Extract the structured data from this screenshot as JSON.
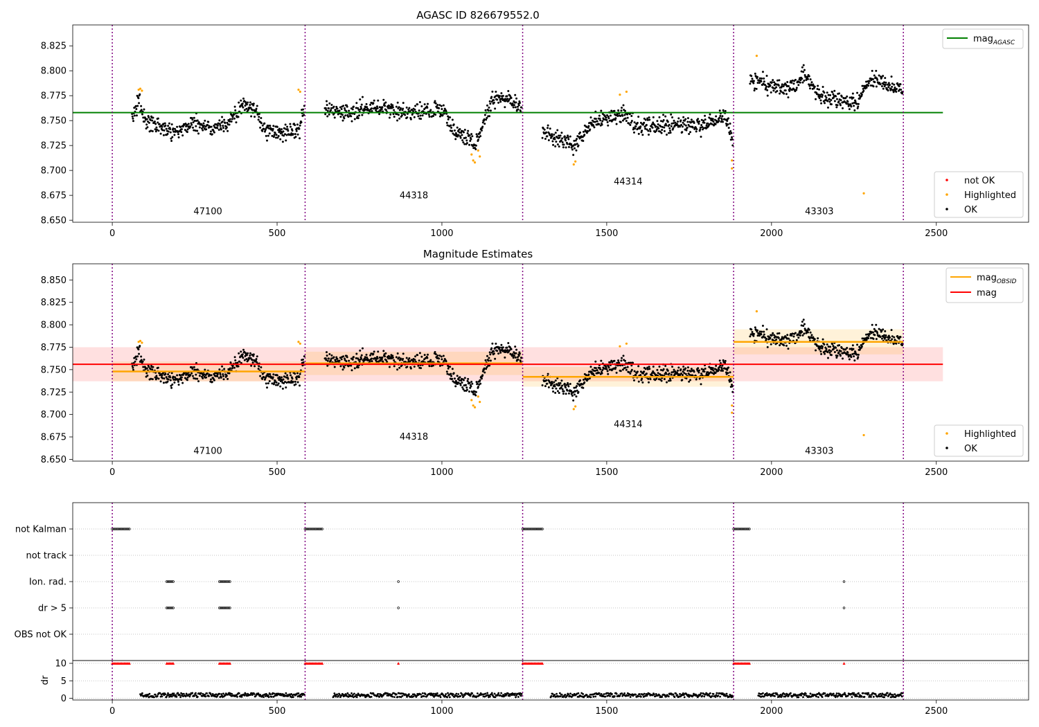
{
  "chart_data": [
    {
      "type": "scatter",
      "title": "AGASC ID 826679552.0",
      "xlim": [
        -120,
        2780
      ],
      "ylim": [
        8.648,
        8.846
      ],
      "xticks": [
        0,
        500,
        1000,
        1500,
        2000,
        2500
      ],
      "xtick_labels": [
        "0",
        "500",
        "1000",
        "1500",
        "2000",
        "2500"
      ],
      "yticks": [
        8.65,
        8.675,
        8.7,
        8.725,
        8.75,
        8.775,
        8.8,
        8.825
      ],
      "ytick_labels": [
        "8.650",
        "8.675",
        "8.700",
        "8.725",
        "8.750",
        "8.775",
        "8.800",
        "8.825"
      ],
      "obs_boundaries": [
        0,
        585,
        1245,
        1885,
        2400
      ],
      "obs_labels": [
        {
          "text": "47100",
          "x": 290,
          "y": 8.656
        },
        {
          "text": "44318",
          "x": 915,
          "y": 8.672
        },
        {
          "text": "44314",
          "x": 1565,
          "y": 8.686
        },
        {
          "text": "43303",
          "x": 2145,
          "y": 8.656
        }
      ],
      "reference_lines": [
        {
          "name": "mag_AGASC",
          "y": 8.758,
          "x": [
            -120,
            2520
          ],
          "color": "#008000"
        }
      ],
      "legend_top": [
        {
          "label": "mag",
          "sub": "AGASC",
          "color": "#008000"
        }
      ],
      "legend_bottom": [
        {
          "label": "not OK",
          "color": "#ff0000"
        },
        {
          "label": "Highlighted",
          "color": "#ffa500"
        },
        {
          "label": "OK",
          "color": "#000000"
        }
      ],
      "grid": false
    },
    {
      "type": "scatter",
      "title": "Magnitude Estimates",
      "xlim": [
        -120,
        2780
      ],
      "ylim": [
        8.648,
        8.868
      ],
      "xticks": [
        0,
        500,
        1000,
        1500,
        2000,
        2500
      ],
      "xtick_labels": [
        "0",
        "500",
        "1000",
        "1500",
        "2000",
        "2500"
      ],
      "yticks": [
        8.65,
        8.675,
        8.7,
        8.725,
        8.75,
        8.775,
        8.8,
        8.825,
        8.85
      ],
      "ytick_labels": [
        "8.650",
        "8.675",
        "8.700",
        "8.725",
        "8.750",
        "8.775",
        "8.800",
        "8.825",
        "8.850"
      ],
      "obs_boundaries": [
        0,
        585,
        1245,
        1885,
        2400
      ],
      "obs_labels": [
        {
          "text": "47100",
          "x": 290,
          "y": 8.656
        },
        {
          "text": "44318",
          "x": 915,
          "y": 8.672
        },
        {
          "text": "44314",
          "x": 1565,
          "y": 8.686
        },
        {
          "text": "43303",
          "x": 2145,
          "y": 8.656
        }
      ],
      "mag": {
        "value": 8.756,
        "band": [
          8.737,
          8.775
        ],
        "x": [
          -120,
          2520
        ],
        "color": "#ff0000"
      },
      "mag_obsid": [
        {
          "x": [
            0,
            585
          ],
          "value": 8.748,
          "band": [
            8.737,
            8.759
          ]
        },
        {
          "x": [
            585,
            1245
          ],
          "value": 8.757,
          "band": [
            8.744,
            8.77
          ]
        },
        {
          "x": [
            1245,
            1885
          ],
          "value": 8.742,
          "band": [
            8.731,
            8.753
          ]
        },
        {
          "x": [
            1885,
            2400
          ],
          "value": 8.781,
          "band": [
            8.767,
            8.795
          ]
        }
      ],
      "legend_top": [
        {
          "label": "mag",
          "sub": "OBSID",
          "color": "#ffa500"
        },
        {
          "label": "mag",
          "sub": "",
          "color": "#ff0000"
        }
      ],
      "legend_bottom": [
        {
          "label": "Highlighted",
          "color": "#ffa500"
        },
        {
          "label": "OK",
          "color": "#000000"
        }
      ],
      "grid": false
    },
    {
      "type": "scatter",
      "title": "",
      "xlim": [
        -120,
        2780
      ],
      "categories": [
        "not Kalman",
        "not track",
        "Ion. rad.",
        "dr > 5",
        "OBS not OK"
      ],
      "flags": {
        "not Kalman": [
          [
            0,
            55
          ],
          [
            585,
            640
          ],
          [
            1245,
            1305
          ],
          [
            1885,
            1935
          ]
        ],
        "not track": [],
        "Ion. rad.": [
          [
            165,
            185
          ],
          [
            325,
            360
          ],
          868,
          2220
        ],
        "dr > 5": [
          [
            165,
            185
          ],
          [
            325,
            360
          ],
          868,
          2220
        ]
      },
      "obs_boundaries": [
        0,
        585,
        1245,
        1885,
        2400
      ],
      "grid": "horizontal dotted"
    },
    {
      "type": "scatter",
      "title": "",
      "ylabel": "dr",
      "xlim": [
        -120,
        2780
      ],
      "ylim": [
        -0.5,
        10.8
      ],
      "xticks": [
        0,
        500,
        1000,
        1500,
        2000,
        2500
      ],
      "xtick_labels": [
        "0",
        "500",
        "1000",
        "1500",
        "2000",
        "2500"
      ],
      "yticks": [
        0,
        5,
        10
      ],
      "ytick_labels": [
        "0",
        "5",
        "10"
      ],
      "dr_typical": [
        0.3,
        1.5
      ],
      "dr_clipped_at": 10,
      "dr_clipped_ranges": [
        [
          0,
          55
        ],
        [
          165,
          185
        ],
        [
          325,
          360
        ],
        [
          585,
          640
        ],
        868,
        [
          1245,
          1305
        ],
        [
          1885,
          1935
        ],
        2220
      ],
      "obs_boundaries": [
        0,
        585,
        1245,
        1885,
        2400
      ],
      "grid": "horizontal dotted"
    }
  ]
}
